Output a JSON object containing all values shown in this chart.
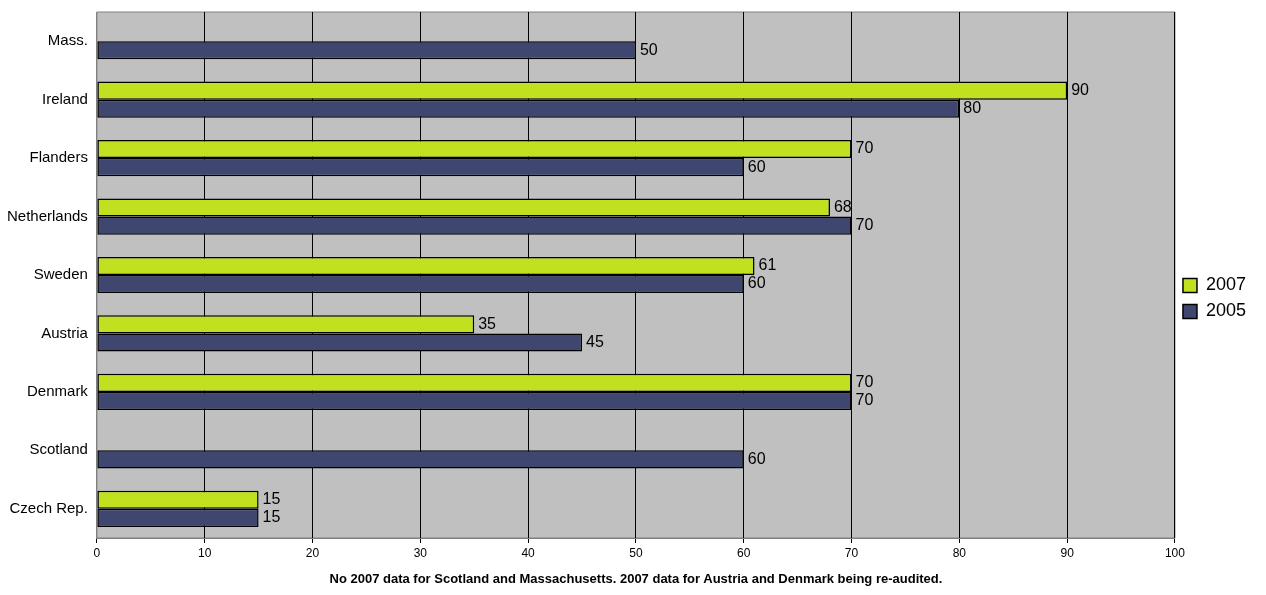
{
  "chart_data": {
    "type": "bar",
    "orientation": "horizontal",
    "categories": [
      "Mass.",
      "Ireland",
      "Flanders",
      "Netherlands",
      "Sweden",
      "Austria",
      "Denmark",
      "Scotland",
      "Czech Rep."
    ],
    "series": [
      {
        "name": "2007",
        "color": "#c0e020",
        "values": [
          null,
          90,
          70,
          68,
          61,
          35,
          70,
          null,
          15
        ]
      },
      {
        "name": "2005",
        "color": "#3f4770",
        "values": [
          50,
          80,
          60,
          70,
          60,
          45,
          70,
          60,
          15
        ]
      }
    ],
    "xlim": [
      0,
      100
    ],
    "xticks": [
      0,
      10,
      20,
      30,
      40,
      50,
      60,
      70,
      80,
      90,
      100
    ],
    "xlabel": "No 2007 data for Scotland and Massachusetts. 2007 data for Austria and Denmark being re-audited.",
    "grid": "x",
    "legend": "right",
    "data_labels": true
  }
}
